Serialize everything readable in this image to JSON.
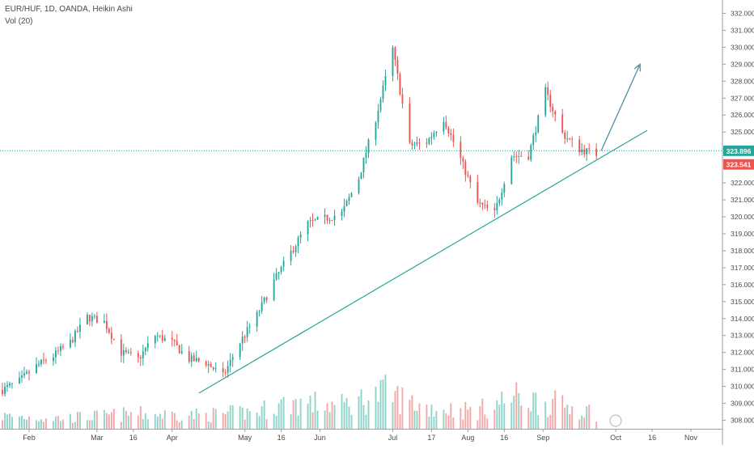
{
  "header": {
    "title": "EUR/HUF, 1D, OANDA, Heikin Ashi",
    "volume_label": "Vol (20)"
  },
  "price_labels": {
    "last_price": "323.896",
    "secondary_price": "323.541"
  },
  "logo_text": "",
  "colors": {
    "up": "#26a69a",
    "down": "#ef5350",
    "vol_up": "#8fd3c8",
    "vol_down": "#f4a6a6",
    "trendline": "#26a69a",
    "arrow": "#4e8ea3",
    "last_price_bg": "#26a69a",
    "secondary_price_bg": "#ef5350"
  },
  "chart_data": {
    "type": "candlestick",
    "title": "EUR/HUF, 1D, OANDA, Heikin Ashi",
    "y_range": [
      307.5,
      332.5
    ],
    "y_ticks": [
      308,
      309,
      310,
      311,
      312,
      313,
      314,
      315,
      316,
      317,
      318,
      319,
      320,
      321,
      322,
      323,
      324,
      325,
      326,
      327,
      328,
      329,
      330,
      331,
      332
    ],
    "x_ticks": [
      "Feb",
      "Mar",
      "16",
      "Apr",
      "May",
      "16",
      "Jun",
      "Jul",
      "17",
      "Aug",
      "16",
      "Sep",
      "Oct",
      "16",
      "Nov"
    ],
    "x_tick_dates": [
      "2019-02-01",
      "2019-03-01",
      "2019-03-16",
      "2019-04-01",
      "2019-05-01",
      "2019-05-16",
      "2019-06-01",
      "2019-07-01",
      "2019-07-17",
      "2019-08-01",
      "2019-08-16",
      "2019-09-01",
      "2019-10-01",
      "2019-10-16",
      "2019-11-01"
    ],
    "x_range": [
      "2019-01-20",
      "2019-11-14"
    ],
    "series_anchor_points": [
      {
        "date": "2019-01-21",
        "close": 309.8
      },
      {
        "date": "2019-01-28",
        "close": 310.3
      },
      {
        "date": "2019-02-04",
        "close": 311.2
      },
      {
        "date": "2019-02-11",
        "close": 311.8
      },
      {
        "date": "2019-02-18",
        "close": 312.6
      },
      {
        "date": "2019-02-25",
        "close": 314.1
      },
      {
        "date": "2019-03-04",
        "close": 313.8
      },
      {
        "date": "2019-03-11",
        "close": 312.0
      },
      {
        "date": "2019-03-18",
        "close": 311.6
      },
      {
        "date": "2019-03-25",
        "close": 313.0
      },
      {
        "date": "2019-04-01",
        "close": 312.6
      },
      {
        "date": "2019-04-08",
        "close": 311.6
      },
      {
        "date": "2019-04-15",
        "close": 311.4
      },
      {
        "date": "2019-04-22",
        "close": 310.6
      },
      {
        "date": "2019-04-29",
        "close": 312.6
      },
      {
        "date": "2019-05-06",
        "close": 314.2
      },
      {
        "date": "2019-05-13",
        "close": 316.2
      },
      {
        "date": "2019-05-20",
        "close": 317.9
      },
      {
        "date": "2019-05-27",
        "close": 319.6
      },
      {
        "date": "2019-06-03",
        "close": 319.9
      },
      {
        "date": "2019-06-10",
        "close": 320.2
      },
      {
        "date": "2019-06-17",
        "close": 322.3
      },
      {
        "date": "2019-06-24",
        "close": 325.8
      },
      {
        "date": "2019-07-01",
        "close": 329.9
      },
      {
        "date": "2019-07-08",
        "close": 324.2
      },
      {
        "date": "2019-07-15",
        "close": 324.4
      },
      {
        "date": "2019-07-22",
        "close": 325.8
      },
      {
        "date": "2019-07-29",
        "close": 323.4
      },
      {
        "date": "2019-08-05",
        "close": 320.8
      },
      {
        "date": "2019-08-12",
        "close": 320.2
      },
      {
        "date": "2019-08-19",
        "close": 323.6
      },
      {
        "date": "2019-08-26",
        "close": 323.6
      },
      {
        "date": "2019-09-02",
        "close": 327.4
      },
      {
        "date": "2019-09-09",
        "close": 324.9
      },
      {
        "date": "2019-09-16",
        "close": 324.0
      },
      {
        "date": "2019-09-23",
        "close": 323.7
      }
    ],
    "volume_anchor_points": [
      {
        "date": "2019-01-21",
        "volume": 0.12
      },
      {
        "date": "2019-02-15",
        "volume": 0.1
      },
      {
        "date": "2019-03-15",
        "volume": 0.14
      },
      {
        "date": "2019-04-15",
        "volume": 0.13
      },
      {
        "date": "2019-05-05",
        "volume": 0.16
      },
      {
        "date": "2019-05-20",
        "volume": 0.25
      },
      {
        "date": "2019-06-10",
        "volume": 0.22
      },
      {
        "date": "2019-06-28",
        "volume": 0.34
      },
      {
        "date": "2019-07-15",
        "volume": 0.2
      },
      {
        "date": "2019-08-05",
        "volume": 0.17
      },
      {
        "date": "2019-08-20",
        "volume": 0.3
      },
      {
        "date": "2019-09-10",
        "volume": 0.22
      },
      {
        "date": "2019-09-23",
        "volume": 0.15
      }
    ],
    "trendline": {
      "start": {
        "date": "2019-04-12",
        "price": 309.6
      },
      "end": {
        "date": "2019-10-14",
        "price": 325.1
      }
    },
    "projection_arrow": {
      "start": {
        "date": "2019-09-25",
        "price": 323.9
      },
      "end": {
        "date": "2019-10-11",
        "price": 329.0
      }
    },
    "horizontal_lines": [
      {
        "price": 323.896
      }
    ],
    "legend": "top-left",
    "grid": false
  }
}
